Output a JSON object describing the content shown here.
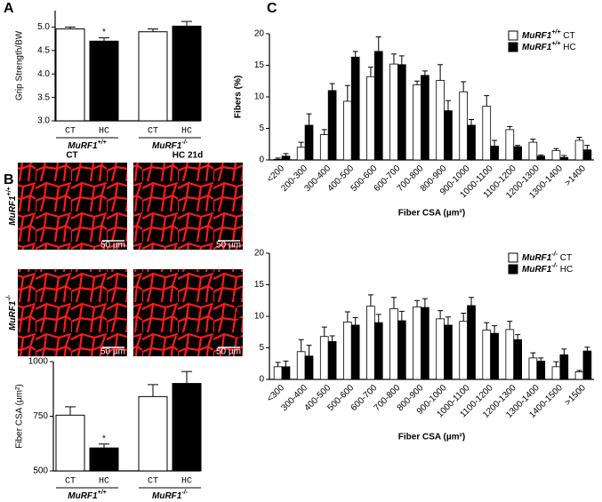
{
  "chart_data": [
    {
      "type": "bar",
      "panel": "A",
      "ylabel": "Grip Strength/BW",
      "categories": [
        "CT",
        "HC",
        "CT",
        "HC"
      ],
      "values": [
        4.96,
        4.7,
        4.9,
        5.02
      ],
      "errors": [
        0.04,
        0.07,
        0.06,
        0.1
      ],
      "colors": [
        "#ffffff",
        "#000000",
        "#ffffff",
        "#000000"
      ],
      "ylim": [
        3.0,
        5.35
      ],
      "yticks": [
        {
          "value": 3,
          "label": "3.0"
        },
        {
          "value": 3.5,
          "label": "3.5"
        },
        {
          "value": 4,
          "label": "4.0"
        },
        {
          "value": 4.5,
          "label": "4.5"
        },
        {
          "value": 5,
          "label": "5.0"
        }
      ],
      "groups": [
        {
          "text": "MuRF1",
          "sup": "+/+"
        },
        {
          "text": "MuRF1",
          "sup": "-/-"
        }
      ],
      "annotation": "*"
    },
    {
      "type": "bar",
      "panel": "B",
      "ylabel": "Fiber CSA (µm²)",
      "images": {
        "columns": [
          "CT",
          "HC 21d"
        ],
        "rows": [
          {
            "text": "MuRF1",
            "sup": "+/+"
          },
          {
            "text": "MuRF1",
            "sup": "-/-"
          }
        ],
        "scale": "50 µm"
      },
      "categories": [
        "CT",
        "HC",
        "CT",
        "HC"
      ],
      "values": [
        755,
        605,
        840,
        900
      ],
      "errors": [
        38,
        18,
        55,
        55
      ],
      "colors": [
        "#ffffff",
        "#000000",
        "#ffffff",
        "#000000"
      ],
      "ylim": [
        500,
        1000
      ],
      "yticks": [
        500,
        750,
        1000
      ],
      "groups": [
        {
          "text": "MuRF1",
          "sup": "+/+"
        },
        {
          "text": "MuRF1",
          "sup": "-/-"
        }
      ],
      "annotation": "*"
    },
    {
      "type": "grouped_bar",
      "panel": "C",
      "ylabel": "Fibers (%)",
      "xlabel": "Fiber CSA (µm²)",
      "categories": [
        "<200",
        "200-300",
        "300-400",
        "400-500",
        "500-600",
        "600-700",
        "700-800",
        "800-900",
        "900-1000",
        "1000-1100",
        "1100-1200",
        "1200-1300",
        "1300-1400",
        ">1400"
      ],
      "series": [
        {
          "name": {
            "text": "MuRF1",
            "sup": "+/+",
            "after": " CT"
          },
          "color": "#ffffff",
          "values": [
            0.1,
            2,
            4,
            9.3,
            13.2,
            15.2,
            11.9,
            12.6,
            10.8,
            8.5,
            4.8,
            2.8,
            1.5,
            3.1
          ],
          "errors": [
            0.2,
            0.8,
            0.8,
            2.5,
            1.5,
            1.6,
            0.6,
            2.5,
            1.6,
            1.7,
            0.5,
            0.5,
            0.3,
            0.5
          ]
        },
        {
          "name": {
            "text": "MuRF1",
            "sup": "+/+",
            "after": " HC"
          },
          "color": "#000000",
          "values": [
            0.6,
            5.5,
            11,
            16.3,
            17.2,
            15.1,
            13.4,
            7.8,
            5.5,
            2.2,
            2.1,
            0.6,
            0.4,
            1.6
          ],
          "errors": [
            0.4,
            1.8,
            1.1,
            0.9,
            2.3,
            1.4,
            0.7,
            1.6,
            0.9,
            0.9,
            0.2,
            0.2,
            0.3,
            0.7
          ]
        }
      ],
      "ylim": [
        0,
        20
      ],
      "yticks": [
        0,
        5,
        10,
        15,
        20
      ]
    },
    {
      "type": "grouped_bar",
      "ylabel": "Fibers (%)",
      "xlabel": "Fiber CSA (µm²)",
      "categories": [
        "<300",
        "300-400",
        "400-500",
        "500-600",
        "600-700",
        "700-800",
        "800-900",
        "900-1000",
        "1000-1100",
        "1100-1200",
        "1200-1300",
        "1300-1400",
        "1400-1500",
        ">1500"
      ],
      "series": [
        {
          "name": {
            "text": "MuRF1",
            "sup": "-/-",
            "after": " CT"
          },
          "color": "#ffffff",
          "values": [
            2,
            4.4,
            6.8,
            9.1,
            11.6,
            11.2,
            11.5,
            9.6,
            9.2,
            7.8,
            7.9,
            3.4,
            2.0,
            1.2
          ],
          "errors": [
            0.7,
            1.9,
            1.5,
            1.6,
            1.8,
            1.8,
            1.0,
            1.3,
            1.3,
            1.2,
            1.3,
            0.8,
            0.8,
            0.2
          ]
        },
        {
          "name": {
            "text": "MuRF1",
            "sup": "-/-",
            "after": " HC"
          },
          "color": "#000000",
          "values": [
            2,
            3.7,
            6,
            8.6,
            9,
            9.3,
            11.4,
            8.6,
            11.7,
            7.3,
            6.3,
            2.9,
            3.9,
            4.5
          ],
          "errors": [
            0.9,
            1.7,
            0.9,
            1.2,
            1.3,
            1.5,
            1.4,
            1.3,
            1.3,
            1.2,
            0.8,
            0.5,
            0.9,
            0.6
          ]
        }
      ],
      "ylim": [
        0,
        20
      ],
      "yticks": [
        0,
        5,
        10,
        15,
        20
      ]
    }
  ]
}
